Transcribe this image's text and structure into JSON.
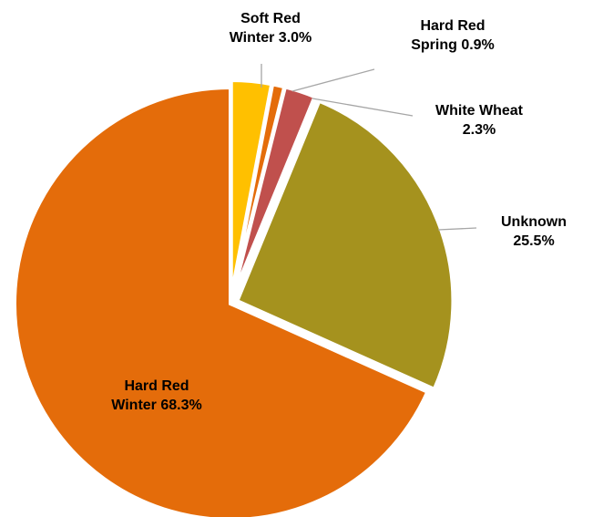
{
  "chart_data": {
    "type": "pie",
    "title": "",
    "slices": [
      {
        "line1": "Hard Red",
        "line2": "Winter 68.3%",
        "category": "Hard Red Winter",
        "value": 68.3,
        "color": "#e46c0a"
      },
      {
        "line1": "Soft Red",
        "line2": "Winter 3.0%",
        "category": "Soft Red Winter",
        "value": 3.0,
        "color": "#ffc000"
      },
      {
        "line1": "Hard Red",
        "line2": "Spring 0.9%",
        "category": "Hard Red Spring",
        "value": 0.9,
        "color": "#e46c0a"
      },
      {
        "line1": "White Wheat",
        "line2": "2.3%",
        "category": "White Wheat",
        "value": 2.3,
        "color": "#c0504d"
      },
      {
        "line1": "Unknown",
        "line2": "25.5%",
        "category": "Unknown",
        "value": 25.5,
        "color": "#a5921e"
      }
    ],
    "exploded": true,
    "legend": "none"
  }
}
